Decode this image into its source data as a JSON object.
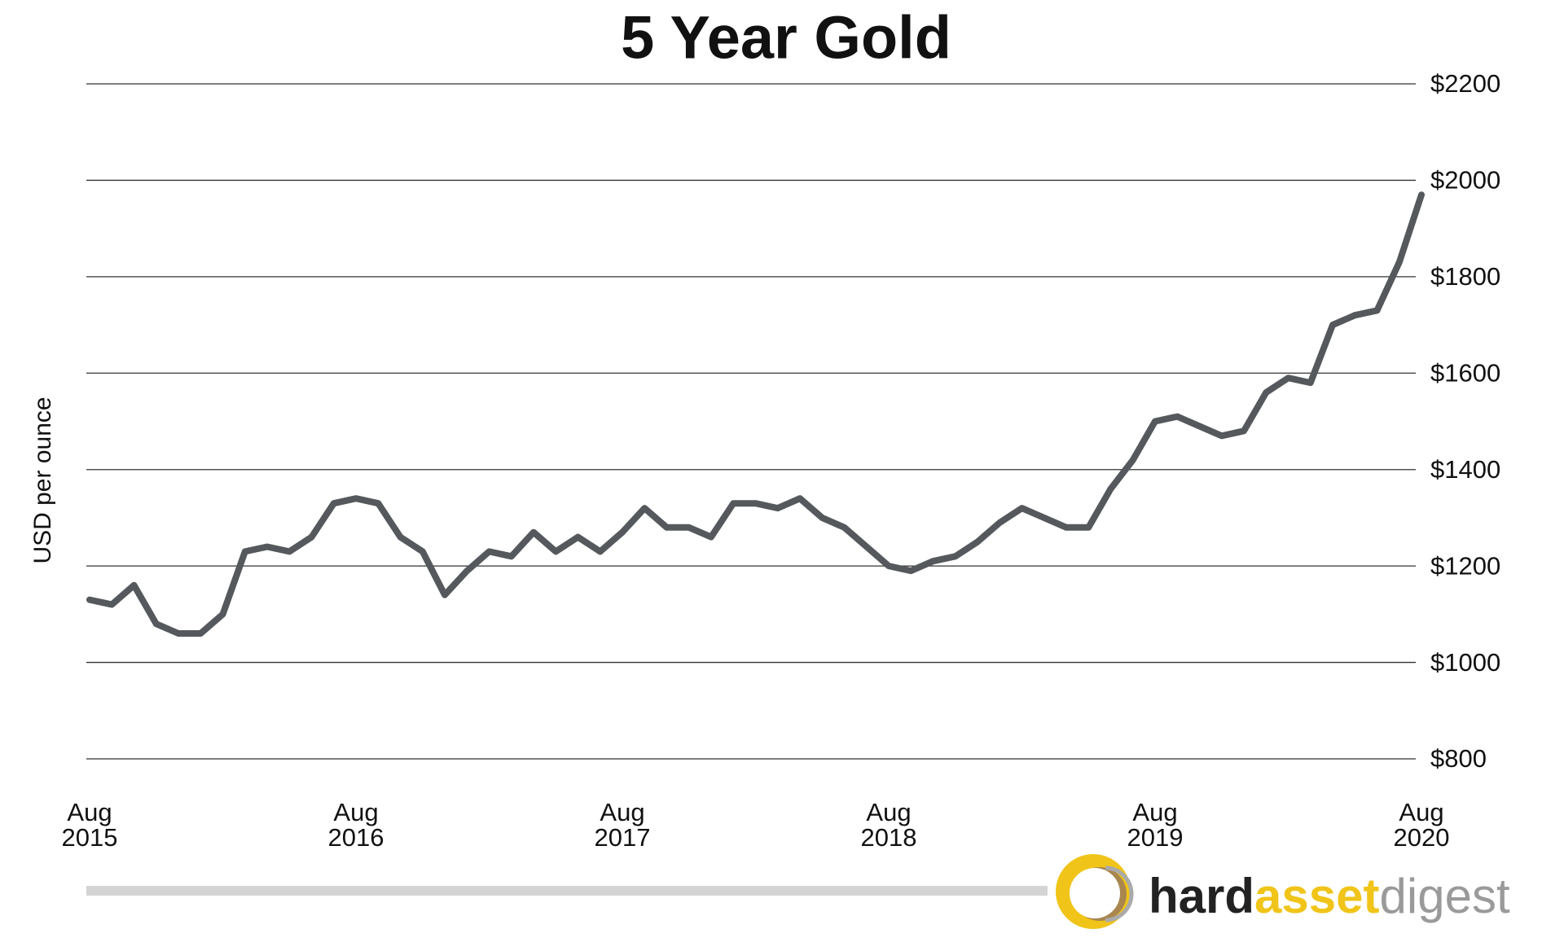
{
  "chart_data": {
    "type": "line",
    "title": "5 Year Gold",
    "y_label": "USD per ounce",
    "x": [
      "2015-08",
      "2015-09",
      "2015-10",
      "2015-11",
      "2015-12",
      "2016-01",
      "2016-02",
      "2016-03",
      "2016-04",
      "2016-05",
      "2016-06",
      "2016-07",
      "2016-08",
      "2016-09",
      "2016-10",
      "2016-11",
      "2016-12",
      "2017-01",
      "2017-02",
      "2017-03",
      "2017-04",
      "2017-05",
      "2017-06",
      "2017-07",
      "2017-08",
      "2017-09",
      "2017-10",
      "2017-11",
      "2017-12",
      "2018-01",
      "2018-02",
      "2018-03",
      "2018-04",
      "2018-05",
      "2018-06",
      "2018-07",
      "2018-08",
      "2018-09",
      "2018-10",
      "2018-11",
      "2018-12",
      "2019-01",
      "2019-02",
      "2019-03",
      "2019-04",
      "2019-05",
      "2019-06",
      "2019-07",
      "2019-08",
      "2019-09",
      "2019-10",
      "2019-11",
      "2019-12",
      "2020-01",
      "2020-02",
      "2020-03",
      "2020-04",
      "2020-05",
      "2020-06",
      "2020-07",
      "2020-08"
    ],
    "series": [
      {
        "name": "Gold",
        "color": "#55585c",
        "values": [
          1130,
          1120,
          1160,
          1080,
          1060,
          1060,
          1100,
          1230,
          1240,
          1230,
          1260,
          1330,
          1340,
          1330,
          1260,
          1230,
          1140,
          1190,
          1230,
          1220,
          1270,
          1230,
          1260,
          1230,
          1270,
          1320,
          1280,
          1280,
          1260,
          1330,
          1330,
          1320,
          1340,
          1300,
          1280,
          1240,
          1200,
          1190,
          1210,
          1220,
          1250,
          1290,
          1320,
          1300,
          1280,
          1280,
          1360,
          1420,
          1500,
          1510,
          1490,
          1470,
          1480,
          1560,
          1590,
          1580,
          1700,
          1720,
          1730,
          1830,
          1970
        ]
      }
    ],
    "xlim": [
      "2015-08",
      "2020-08"
    ],
    "xticks": [
      {
        "value": "2015-08",
        "label": "Aug\n2015"
      },
      {
        "value": "2016-08",
        "label": "Aug\n2016"
      },
      {
        "value": "2017-08",
        "label": "Aug\n2017"
      },
      {
        "value": "2018-08",
        "label": "Aug\n2018"
      },
      {
        "value": "2019-08",
        "label": "Aug\n2019"
      },
      {
        "value": "2020-08",
        "label": "Aug\n2020"
      }
    ],
    "ylim": [
      800,
      2200
    ],
    "yticks": [
      {
        "value": 800,
        "label": "$800"
      },
      {
        "value": 1000,
        "label": "$1000"
      },
      {
        "value": 1200,
        "label": "$1200"
      },
      {
        "value": 1400,
        "label": "$1400"
      },
      {
        "value": 1600,
        "label": "$1600"
      },
      {
        "value": 1800,
        "label": "$1800"
      },
      {
        "value": 2000,
        "label": "$2000"
      },
      {
        "value": 2200,
        "label": "$2200"
      }
    ],
    "grid": true
  },
  "branding": {
    "logo_parts": [
      "hard",
      "asset",
      "digest"
    ]
  }
}
